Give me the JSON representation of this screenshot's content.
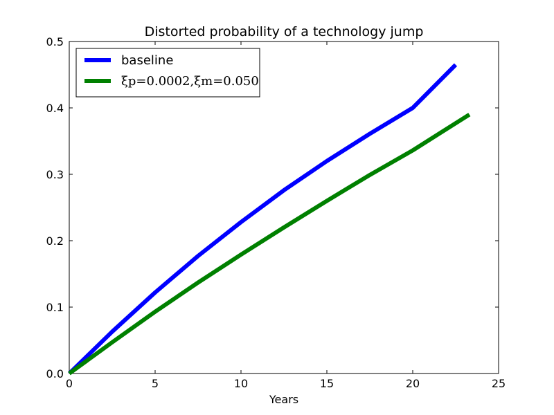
{
  "chart_data": {
    "type": "line",
    "title": "Distorted probability of a technology jump",
    "xlabel": "Years",
    "ylabel": "",
    "xlim": [
      0,
      25
    ],
    "ylim": [
      0,
      0.5
    ],
    "xticks": [
      0,
      5,
      10,
      15,
      20,
      25
    ],
    "yticks": [
      0.0,
      0.1,
      0.2,
      0.3,
      0.4,
      0.5
    ],
    "xtick_labels": [
      "0",
      "5",
      "10",
      "15",
      "20",
      "25"
    ],
    "ytick_labels": [
      "0.0",
      "0.1",
      "0.2",
      "0.3",
      "0.4",
      "0.5"
    ],
    "grid": false,
    "legend_position": "top-left",
    "series": [
      {
        "name": "baseline",
        "color": "#0000ff",
        "x": [
          0,
          2.5,
          5,
          7.5,
          10,
          12.5,
          15,
          17.5,
          20,
          22.5
        ],
        "y": [
          0,
          0.063,
          0.122,
          0.177,
          0.228,
          0.276,
          0.32,
          0.361,
          0.4,
          0.465
        ]
      },
      {
        "name": "ξp=0.0002,ξm=0.050",
        "color": "#008000",
        "x": [
          0,
          2.5,
          5,
          7.5,
          10,
          12.5,
          15,
          17.5,
          20,
          23.3
        ],
        "y": [
          0,
          0.047,
          0.093,
          0.137,
          0.179,
          0.22,
          0.26,
          0.299,
          0.336,
          0.39
        ]
      }
    ]
  }
}
